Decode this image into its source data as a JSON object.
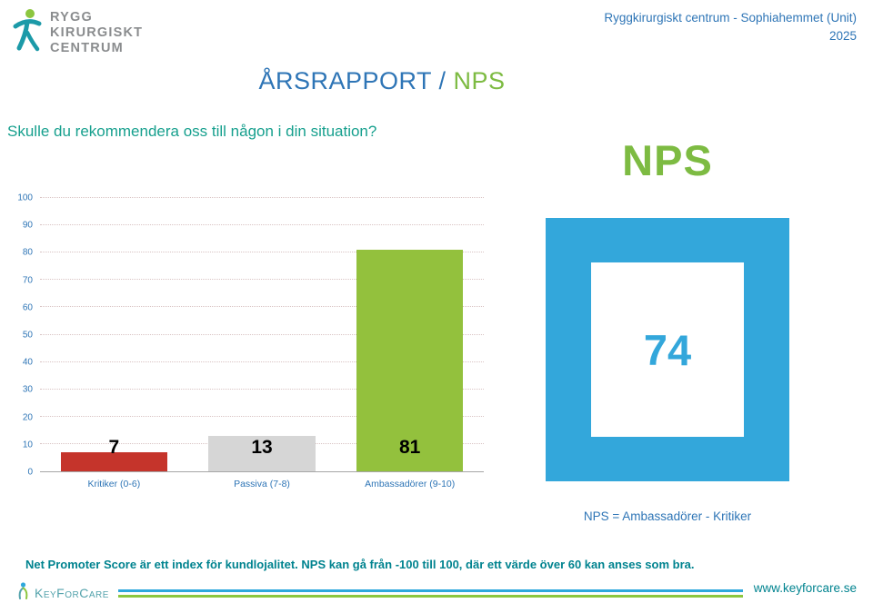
{
  "header": {
    "logo": {
      "line1": "RYGG",
      "line2": "KIRURGISKT",
      "line3": "CENTRUM"
    },
    "unit_line": "Ryggkirurgiskt centrum - Sophiahemmet (Unit)",
    "year": "2025",
    "title_main": "ÅRSRAPPORT /",
    "title_accent": "NPS"
  },
  "question": "Skulle du rekommendera oss till någon i din situation?",
  "chart_data": {
    "type": "bar",
    "title": "Skulle du rekommendera oss till någon i din situation?",
    "categories": [
      "Kritiker (0-6)",
      "Passiva (7-8)",
      "Ambassadörer (9-10)"
    ],
    "values": [
      7,
      13,
      81
    ],
    "bar_colors": [
      "#C5342B",
      "#D6D6D6",
      "#93C13D"
    ],
    "xlabel": "",
    "ylabel": "",
    "ylim": [
      0,
      100
    ],
    "ytick_step": 10,
    "grid": true,
    "legend": false
  },
  "nps_panel": {
    "heading": "NPS",
    "score": "74",
    "formula": "NPS = Ambassadörer - Kritiker"
  },
  "footnote": "Net Promoter Score är ett index för kundlojalitet. NPS kan gå från -100 till 100, där ett värde över 60 kan anses som bra.",
  "footer": {
    "brand": "KeyForCare",
    "url": "www.keyforcare.se"
  },
  "colors": {
    "blue_text": "#2E75B6",
    "accent_green": "#7DBB42",
    "teal_text": "#00838F",
    "question_teal": "#17A08E",
    "nps_blue": "#33A7DB"
  }
}
